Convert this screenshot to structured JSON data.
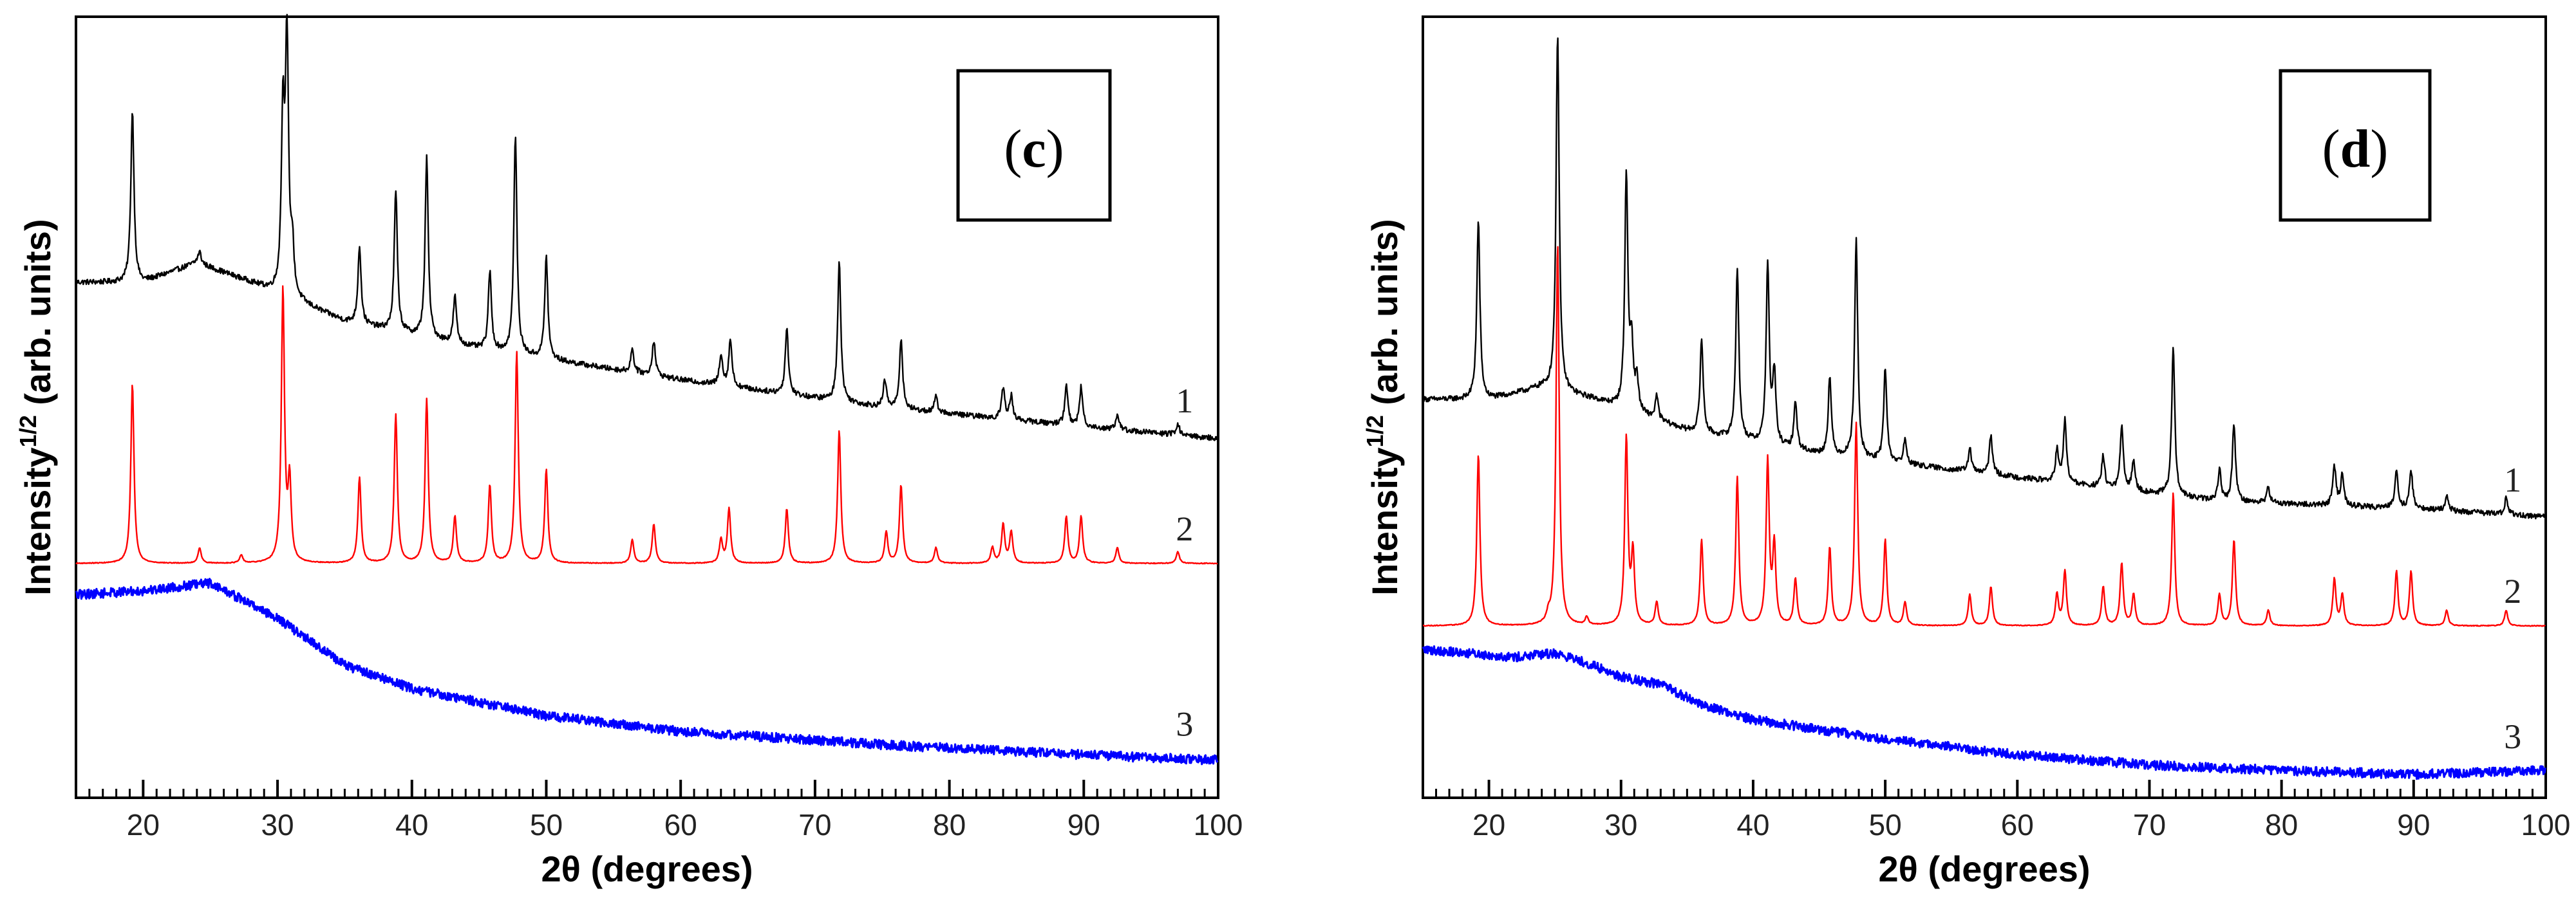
{
  "chart_data": [
    {
      "type": "line",
      "panel_label": "c",
      "xlabel": "2θ (degrees)",
      "ylabel": "Intensity",
      "ylabel_superscript": "1/2",
      "ylabel_suffix": " (arb. units)",
      "xlim": [
        15,
        100
      ],
      "xticks": [
        20,
        30,
        40,
        50,
        60,
        70,
        80,
        90,
        100
      ],
      "y_units": "arb. units (offset traces, 0 = bottom axis, 100 = top axis)",
      "ylim": [
        0,
        100
      ],
      "series": [
        {
          "name": "1",
          "color": "#000000",
          "noise": 0.35,
          "baseline": [
            [
              15,
              66
            ],
            [
              20,
              66
            ],
            [
              24,
              68.5
            ],
            [
              28,
              66
            ],
            [
              35,
              61
            ],
            [
              45,
              57.5
            ],
            [
              60,
              53.5
            ],
            [
              75,
              50
            ],
            [
              90,
              47.5
            ],
            [
              100,
              46
            ]
          ],
          "peaks": [
            [
              19.2,
              22
            ],
            [
              24.2,
              1.5
            ],
            [
              30.4,
              22
            ],
            [
              30.7,
              32
            ],
            [
              31.1,
              6
            ],
            [
              36.1,
              10
            ],
            [
              38.8,
              18
            ],
            [
              41.1,
              23
            ],
            [
              43.2,
              6
            ],
            [
              45.8,
              10
            ],
            [
              47.7,
              28
            ],
            [
              50,
              13
            ],
            [
              56.4,
              3
            ],
            [
              58,
              4.5
            ],
            [
              63,
              4
            ],
            [
              63.7,
              6
            ],
            [
              67.9,
              8.5
            ],
            [
              71.8,
              18
            ],
            [
              75.2,
              3.5
            ],
            [
              76.4,
              9
            ],
            [
              79,
              2
            ],
            [
              84,
              4
            ],
            [
              84.6,
              3
            ],
            [
              88.7,
              5
            ],
            [
              89.8,
              5
            ],
            [
              92.5,
              2
            ],
            [
              97,
              1.5
            ]
          ],
          "value_label": "1"
        },
        {
          "name": "2",
          "color": "#ff0000",
          "noise": 0.05,
          "baseline": [
            [
              15,
              30
            ],
            [
              100,
              30
            ]
          ],
          "peaks": [
            [
              19.2,
              23
            ],
            [
              24.2,
              2
            ],
            [
              27.3,
              1
            ],
            [
              30.4,
              35
            ],
            [
              30.9,
              10
            ],
            [
              36.1,
              11
            ],
            [
              38.8,
              19
            ],
            [
              41.1,
              21
            ],
            [
              43.2,
              6
            ],
            [
              45.8,
              10
            ],
            [
              47.8,
              27
            ],
            [
              50,
              12
            ],
            [
              56.4,
              3
            ],
            [
              58,
              5
            ],
            [
              63,
              3
            ],
            [
              63.6,
              7
            ],
            [
              67.9,
              7
            ],
            [
              71.8,
              17
            ],
            [
              75.3,
              4
            ],
            [
              76.4,
              10
            ],
            [
              79,
              2
            ],
            [
              83.2,
              2
            ],
            [
              84,
              5
            ],
            [
              84.6,
              4
            ],
            [
              88.7,
              6
            ],
            [
              89.8,
              6
            ],
            [
              92.5,
              2
            ],
            [
              97,
              1.5
            ]
          ],
          "value_label": "2"
        },
        {
          "name": "3",
          "color": "#0000ff",
          "noise": 0.6,
          "baseline": [
            [
              15,
              26
            ],
            [
              20,
              26.5
            ],
            [
              25,
              27.5
            ],
            [
              30,
              23
            ],
            [
              35,
              17
            ],
            [
              40,
              14
            ],
            [
              50,
              10.5
            ],
            [
              60,
              8.5
            ],
            [
              75,
              6.8
            ],
            [
              90,
              5.5
            ],
            [
              100,
              4.8
            ]
          ],
          "peaks": [],
          "value_label": "3"
        }
      ]
    },
    {
      "type": "line",
      "panel_label": "d",
      "xlabel": "2θ (degrees)",
      "ylabel": "Intensity",
      "ylabel_superscript": "1/2",
      "ylabel_suffix": " (arb. units)",
      "xlim": [
        15,
        100
      ],
      "xticks": [
        20,
        30,
        40,
        50,
        60,
        70,
        80,
        90,
        100
      ],
      "y_units": "arb. units (offset traces, 0 = bottom axis, 100 = top axis)",
      "ylim": [
        0,
        100
      ],
      "series": [
        {
          "name": "1",
          "color": "#000000",
          "noise": 0.35,
          "baseline": [
            [
              15,
              51
            ],
            [
              20,
              51
            ],
            [
              24,
              52.5
            ],
            [
              28,
              51
            ],
            [
              35,
              47
            ],
            [
              45,
              44
            ],
            [
              60,
              41
            ],
            [
              75,
              38
            ],
            [
              90,
              37
            ],
            [
              100,
              36
            ]
          ],
          "peaks": [
            [
              19.2,
              23
            ],
            [
              25.2,
              46
            ],
            [
              30.4,
              30
            ],
            [
              30.8,
              8
            ],
            [
              31.2,
              4
            ],
            [
              32.7,
              3
            ],
            [
              36.1,
              12
            ],
            [
              38.8,
              22
            ],
            [
              41.1,
              23
            ],
            [
              41.6,
              9
            ],
            [
              43.2,
              6
            ],
            [
              45.8,
              10
            ],
            [
              47.8,
              28
            ],
            [
              50,
              12
            ],
            [
              51.5,
              3
            ],
            [
              56.4,
              3
            ],
            [
              58,
              5
            ],
            [
              63,
              4
            ],
            [
              63.6,
              8
            ],
            [
              66.5,
              4
            ],
            [
              67.9,
              8
            ],
            [
              68.8,
              4
            ],
            [
              71.8,
              19
            ],
            [
              75.3,
              4
            ],
            [
              76.4,
              10
            ],
            [
              79,
              2
            ],
            [
              84,
              5
            ],
            [
              84.6,
              4
            ],
            [
              88.7,
              5
            ],
            [
              89.8,
              5
            ],
            [
              92.5,
              2
            ],
            [
              97,
              2
            ]
          ],
          "value_label": "1"
        },
        {
          "name": "2",
          "color": "#ff0000",
          "noise": 0.05,
          "baseline": [
            [
              15,
              22
            ],
            [
              100,
              22
            ]
          ],
          "peaks": [
            [
              19.2,
              22
            ],
            [
              24.5,
              1
            ],
            [
              25.2,
              49
            ],
            [
              27.4,
              1
            ],
            [
              30.4,
              24
            ],
            [
              30.9,
              9
            ],
            [
              32.7,
              3
            ],
            [
              36.1,
              11
            ],
            [
              38.8,
              19
            ],
            [
              41.1,
              21
            ],
            [
              41.6,
              10
            ],
            [
              43.2,
              6
            ],
            [
              45.8,
              10
            ],
            [
              47.8,
              26
            ],
            [
              50,
              11
            ],
            [
              51.5,
              3
            ],
            [
              56.4,
              4
            ],
            [
              58,
              5
            ],
            [
              63,
              4
            ],
            [
              63.6,
              7
            ],
            [
              66.5,
              5
            ],
            [
              67.9,
              8
            ],
            [
              68.8,
              4
            ],
            [
              71.8,
              17
            ],
            [
              75.3,
              4
            ],
            [
              76.4,
              11
            ],
            [
              79,
              2
            ],
            [
              84,
              6
            ],
            [
              84.6,
              4
            ],
            [
              88.7,
              7
            ],
            [
              89.8,
              7
            ],
            [
              92.5,
              2
            ],
            [
              97,
              2
            ]
          ],
          "value_label": "2"
        },
        {
          "name": "3",
          "color": "#0000ff",
          "noise": 0.6,
          "baseline": [
            [
              15,
              19
            ],
            [
              22,
              18
            ],
            [
              25,
              18.5
            ],
            [
              27,
              17.5
            ],
            [
              30,
              15.5
            ],
            [
              33,
              14.5
            ],
            [
              36,
              12
            ],
            [
              40,
              10
            ],
            [
              50,
              7.5
            ],
            [
              60,
              5.5
            ],
            [
              70,
              4.2
            ],
            [
              80,
              3.5
            ],
            [
              90,
              3
            ],
            [
              100,
              3.5
            ]
          ],
          "peaks": [],
          "value_label": "3"
        }
      ]
    }
  ]
}
